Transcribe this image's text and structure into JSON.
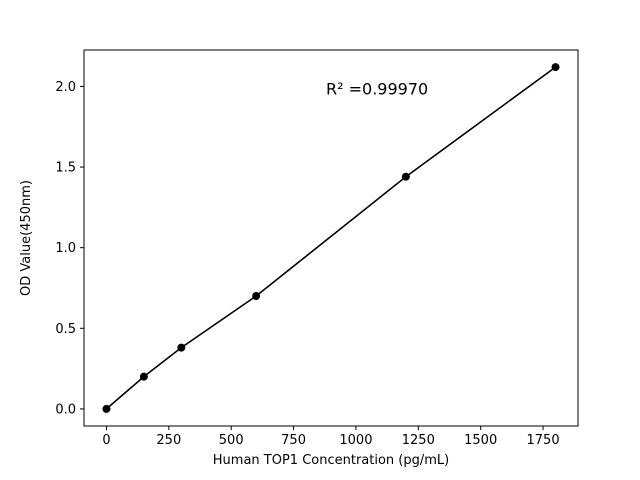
{
  "figure": {
    "background_color": "#ffffff",
    "foreground_color": "#000000"
  },
  "chart_data": {
    "type": "scatter",
    "title": "",
    "xlabel": "Human TOP1 Concentration (pg/mL)",
    "ylabel": "OD Value(450nm)",
    "x": [
      0,
      150,
      300,
      600,
      1200,
      1800
    ],
    "y": [
      0.0,
      0.2,
      0.38,
      0.7,
      1.44,
      2.12
    ],
    "has_fit_line": true,
    "line_color": "#000000",
    "marker_color": "#000000",
    "marker_style": "filled-circle",
    "grid": false,
    "legend": "none",
    "xlim": [
      -90,
      1890
    ],
    "ylim": [
      -0.106,
      2.226
    ],
    "x_ticks": [
      "0",
      "250",
      "500",
      "750",
      "1000",
      "1250",
      "1500",
      "1750"
    ],
    "x_tick_values": [
      0,
      250,
      500,
      750,
      1000,
      1250,
      1500,
      1750
    ],
    "y_ticks": [
      "0.0",
      "0.5",
      "1.0",
      "1.5",
      "2.0"
    ],
    "y_tick_values": [
      0.0,
      0.5,
      1.0,
      1.5,
      2.0
    ],
    "annotation": {
      "text": "R² =0.99970",
      "x": 880,
      "y": 1.95
    }
  }
}
